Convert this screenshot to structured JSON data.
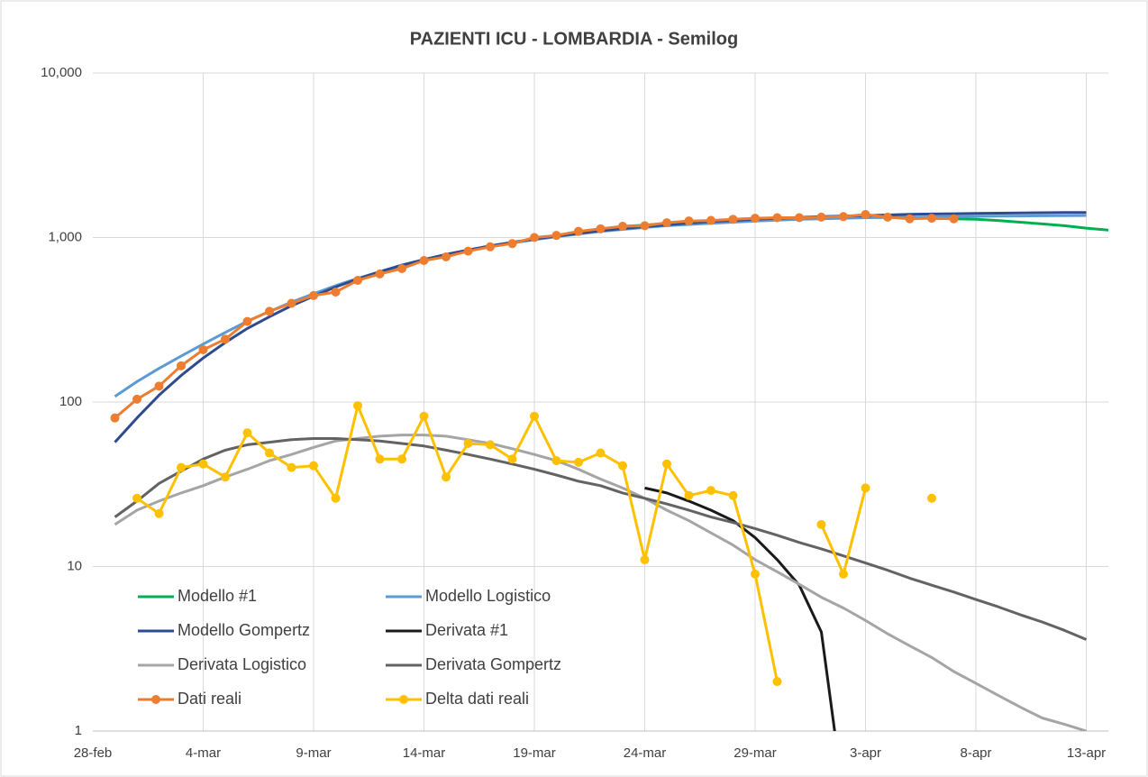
{
  "chart_data": {
    "type": "line",
    "title": "PAZIENTI ICU - LOMBARDIA - Semilog",
    "categories": [
      "28-feb",
      null,
      null,
      null,
      null,
      "4-mar",
      null,
      null,
      null,
      null,
      "9-mar",
      null,
      null,
      null,
      null,
      "14-mar",
      null,
      null,
      null,
      null,
      "19-mar",
      null,
      null,
      null,
      null,
      "24-mar",
      null,
      null,
      null,
      null,
      "29-mar",
      null,
      null,
      null,
      null,
      "3-apr",
      null,
      null,
      null,
      null,
      "8-apr",
      null,
      null,
      null,
      null,
      "13-apr",
      null
    ],
    "log_scale": true,
    "grid": true,
    "legend": "bottom-left",
    "ylim": [
      1,
      10000
    ],
    "yticks": [
      1,
      10,
      100,
      {
        "value": 1000,
        "label": "1,000"
      },
      {
        "value": 10000,
        "label": "10,000"
      }
    ],
    "series": [
      {
        "name": "Modello  #1",
        "color": "#00b050",
        "marker": false,
        "values": [
          null,
          null,
          null,
          null,
          null,
          null,
          null,
          null,
          null,
          null,
          null,
          null,
          null,
          null,
          null,
          null,
          null,
          null,
          null,
          null,
          null,
          null,
          null,
          null,
          1170,
          1190,
          1220,
          1240,
          1260,
          1280,
          1300,
          1310,
          1320,
          1330,
          1335,
          1340,
          1330,
          1320,
          1310,
          1300,
          1290,
          1270,
          1240,
          1210,
          1180,
          1140,
          1110
        ]
      },
      {
        "name": "Modello Logistico",
        "color": "#5b9bd5",
        "marker": false,
        "values": [
          null,
          108,
          133,
          160,
          190,
          225,
          265,
          310,
          355,
          405,
          455,
          510,
          565,
          620,
          675,
          730,
          780,
          830,
          880,
          925,
          970,
          1010,
          1050,
          1090,
          1120,
          1150,
          1180,
          1200,
          1220,
          1240,
          1260,
          1275,
          1290,
          1300,
          1310,
          1320,
          1325,
          1330,
          1335,
          1340,
          1345,
          1350,
          1352,
          1355,
          1358,
          1360,
          null
        ]
      },
      {
        "name": "Modello Gompertz",
        "color": "#2f4b8f",
        "marker": false,
        "values": [
          null,
          57,
          80,
          110,
          145,
          185,
          230,
          280,
          330,
          385,
          440,
          500,
          560,
          620,
          680,
          735,
          790,
          840,
          890,
          935,
          980,
          1020,
          1060,
          1100,
          1135,
          1165,
          1195,
          1225,
          1250,
          1270,
          1290,
          1310,
          1325,
          1340,
          1350,
          1360,
          1370,
          1385,
          1390,
          1395,
          1400,
          1405,
          1410,
          1415,
          1420,
          1420,
          null
        ]
      },
      {
        "name": "Derivata #1",
        "color": "#1a1a1a",
        "marker": false,
        "values": [
          null,
          null,
          null,
          null,
          null,
          null,
          null,
          null,
          null,
          null,
          null,
          null,
          null,
          null,
          null,
          null,
          null,
          null,
          null,
          null,
          null,
          null,
          null,
          null,
          null,
          30,
          28,
          25,
          22,
          19,
          15,
          11,
          7.7,
          4,
          0.4,
          null,
          null,
          null,
          null,
          null,
          null,
          null,
          null,
          null,
          null,
          null,
          null
        ]
      },
      {
        "name": "Derivata Logistico",
        "color": "#a5a5a5",
        "marker": false,
        "values": [
          null,
          18,
          22,
          25,
          28,
          31,
          35,
          39,
          44,
          48,
          53,
          58,
          60,
          62,
          63,
          63,
          62,
          59,
          56,
          52,
          48,
          44,
          39,
          34,
          30,
          26,
          22,
          19,
          16,
          13.5,
          11,
          9.3,
          7.8,
          6.5,
          5.6,
          4.7,
          3.9,
          3.3,
          2.8,
          2.3,
          1.95,
          1.65,
          1.4,
          1.2,
          1.1,
          1.0,
          null
        ]
      },
      {
        "name": "Derivata Gompertz",
        "color": "#636363",
        "marker": false,
        "values": [
          null,
          20,
          25,
          32,
          38,
          45,
          51,
          55,
          57,
          59,
          60,
          60,
          59,
          58,
          56,
          54,
          51,
          48,
          45,
          42,
          39,
          36,
          33,
          31,
          28,
          26,
          24,
          22,
          20,
          18.5,
          17,
          15.5,
          14,
          12.8,
          11.6,
          10.5,
          9.5,
          8.5,
          7.7,
          7.0,
          6.3,
          5.7,
          5.1,
          4.6,
          4.1,
          3.6,
          null
        ]
      },
      {
        "name": "Dati reali",
        "color": "#ed7d31",
        "marker": true,
        "values": [
          null,
          80,
          104,
          125,
          166,
          208,
          241,
          309,
          356,
          398,
          444,
          466,
          549,
          601,
          647,
          725,
          763,
          826,
          878,
          919,
          1000,
          1030,
          1090,
          1130,
          1170,
          1180,
          1230,
          1260,
          1270,
          1290,
          1310,
          1320,
          1320,
          1330,
          1340,
          1380,
          1330,
          1300,
          1310,
          1300,
          null,
          null,
          null,
          null,
          null,
          null,
          null
        ]
      },
      {
        "name": "Delta dati reali",
        "color": "#ffc000",
        "marker": true,
        "values": [
          null,
          null,
          26,
          21,
          40,
          42,
          35,
          65,
          49,
          40,
          41,
          26,
          95,
          45,
          45,
          82,
          35,
          56,
          55,
          45,
          82,
          44,
          43,
          49,
          41,
          11,
          42,
          27,
          29,
          27,
          9,
          2,
          null,
          18,
          9,
          30,
          null,
          null,
          26,
          null,
          null,
          null,
          null,
          null,
          null,
          null,
          null
        ]
      }
    ]
  }
}
